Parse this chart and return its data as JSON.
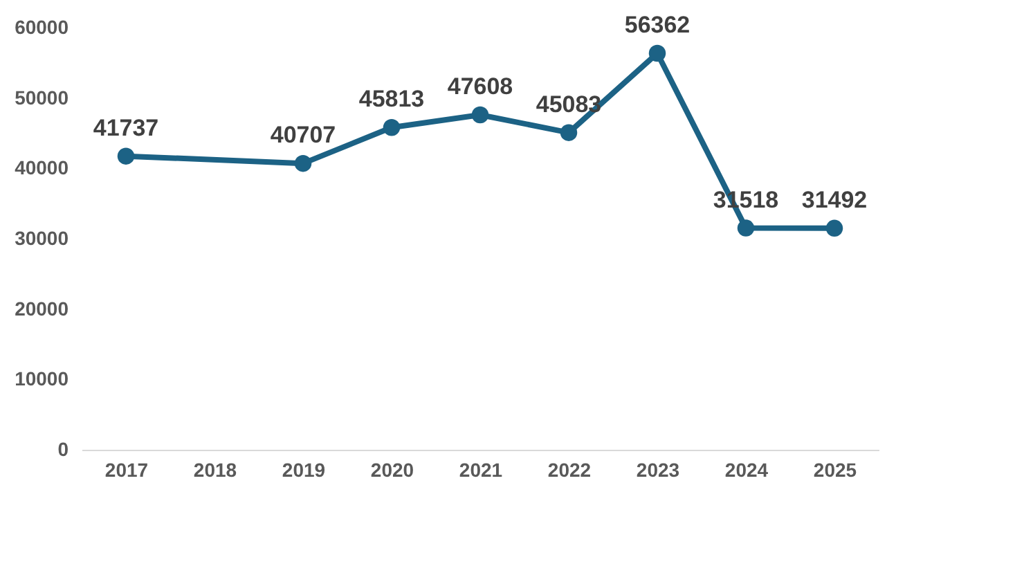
{
  "chart_data": {
    "type": "line",
    "categories": [
      "2017",
      "2018",
      "2019",
      "2020",
      "2021",
      "2022",
      "2023",
      "2024",
      "2025"
    ],
    "series": [
      {
        "color": "#1c6285",
        "values": [
          41737,
          null,
          40707,
          45813,
          47608,
          45083,
          56362,
          31518,
          31492
        ]
      }
    ],
    "ylim": [
      0,
      60000
    ],
    "yticks": [
      0,
      10000,
      20000,
      30000,
      40000,
      50000,
      60000
    ],
    "grid": false,
    "marker": "circle",
    "line_style": "solid",
    "data_labels": true
  }
}
